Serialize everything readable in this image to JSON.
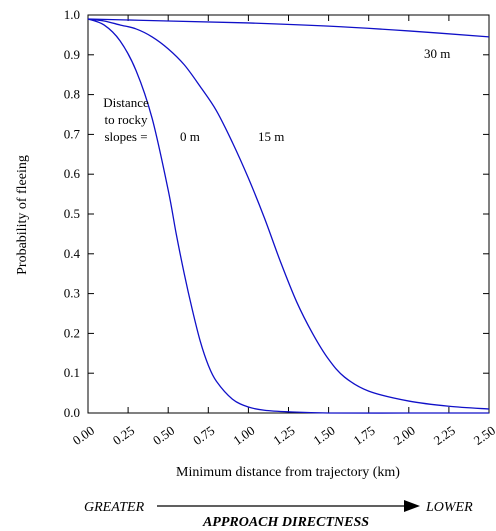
{
  "chart_data": {
    "type": "line",
    "title": "",
    "xlabel": "Minimum distance from trajectory (km)",
    "ylabel": "Probability of fleeing",
    "xlim": [
      0,
      2.5
    ],
    "ylim": [
      0,
      1.0
    ],
    "x_ticks": [
      "0.00",
      "0.25",
      "0.50",
      "0.75",
      "1.00",
      "1.25",
      "1.50",
      "1.75",
      "2.00",
      "2.25",
      "2.50"
    ],
    "y_ticks": [
      "0.0",
      "0.1",
      "0.2",
      "0.3",
      "0.4",
      "0.5",
      "0.6",
      "0.7",
      "0.8",
      "0.9",
      "1.0"
    ],
    "grid": false,
    "line_color": "#1010c8",
    "annotation": "Distance to rocky slopes =",
    "annotation_lines": [
      "Distance",
      "to rocky",
      "slopes ="
    ],
    "series": [
      {
        "name": "0 m",
        "x": [
          0,
          0.1,
          0.2,
          0.3,
          0.4,
          0.5,
          0.55,
          0.6,
          0.65,
          0.7,
          0.75,
          0.8,
          0.9,
          1.0,
          1.1,
          1.25,
          1.5,
          2.0,
          2.5
        ],
        "y": [
          0.99,
          0.975,
          0.935,
          0.86,
          0.74,
          0.56,
          0.45,
          0.35,
          0.26,
          0.18,
          0.12,
          0.08,
          0.035,
          0.015,
          0.007,
          0.003,
          0.0,
          0.0,
          0.0
        ]
      },
      {
        "name": "15 m",
        "x": [
          0,
          0.1,
          0.2,
          0.3,
          0.4,
          0.5,
          0.6,
          0.7,
          0.8,
          0.9,
          1.0,
          1.1,
          1.2,
          1.3,
          1.4,
          1.5,
          1.6,
          1.75,
          2.0,
          2.25,
          2.5
        ],
        "y": [
          0.99,
          0.985,
          0.975,
          0.965,
          0.945,
          0.915,
          0.875,
          0.82,
          0.76,
          0.68,
          0.59,
          0.49,
          0.38,
          0.28,
          0.2,
          0.135,
          0.09,
          0.055,
          0.03,
          0.017,
          0.01
        ]
      },
      {
        "name": "30 m",
        "x": [
          0,
          0.5,
          1.0,
          1.5,
          2.0,
          2.5
        ],
        "y": [
          0.99,
          0.985,
          0.98,
          0.972,
          0.96,
          0.945
        ]
      }
    ]
  },
  "approach": {
    "left": "GREATER",
    "right": "LOWER",
    "title": "APPROACH DIRECTNESS"
  }
}
